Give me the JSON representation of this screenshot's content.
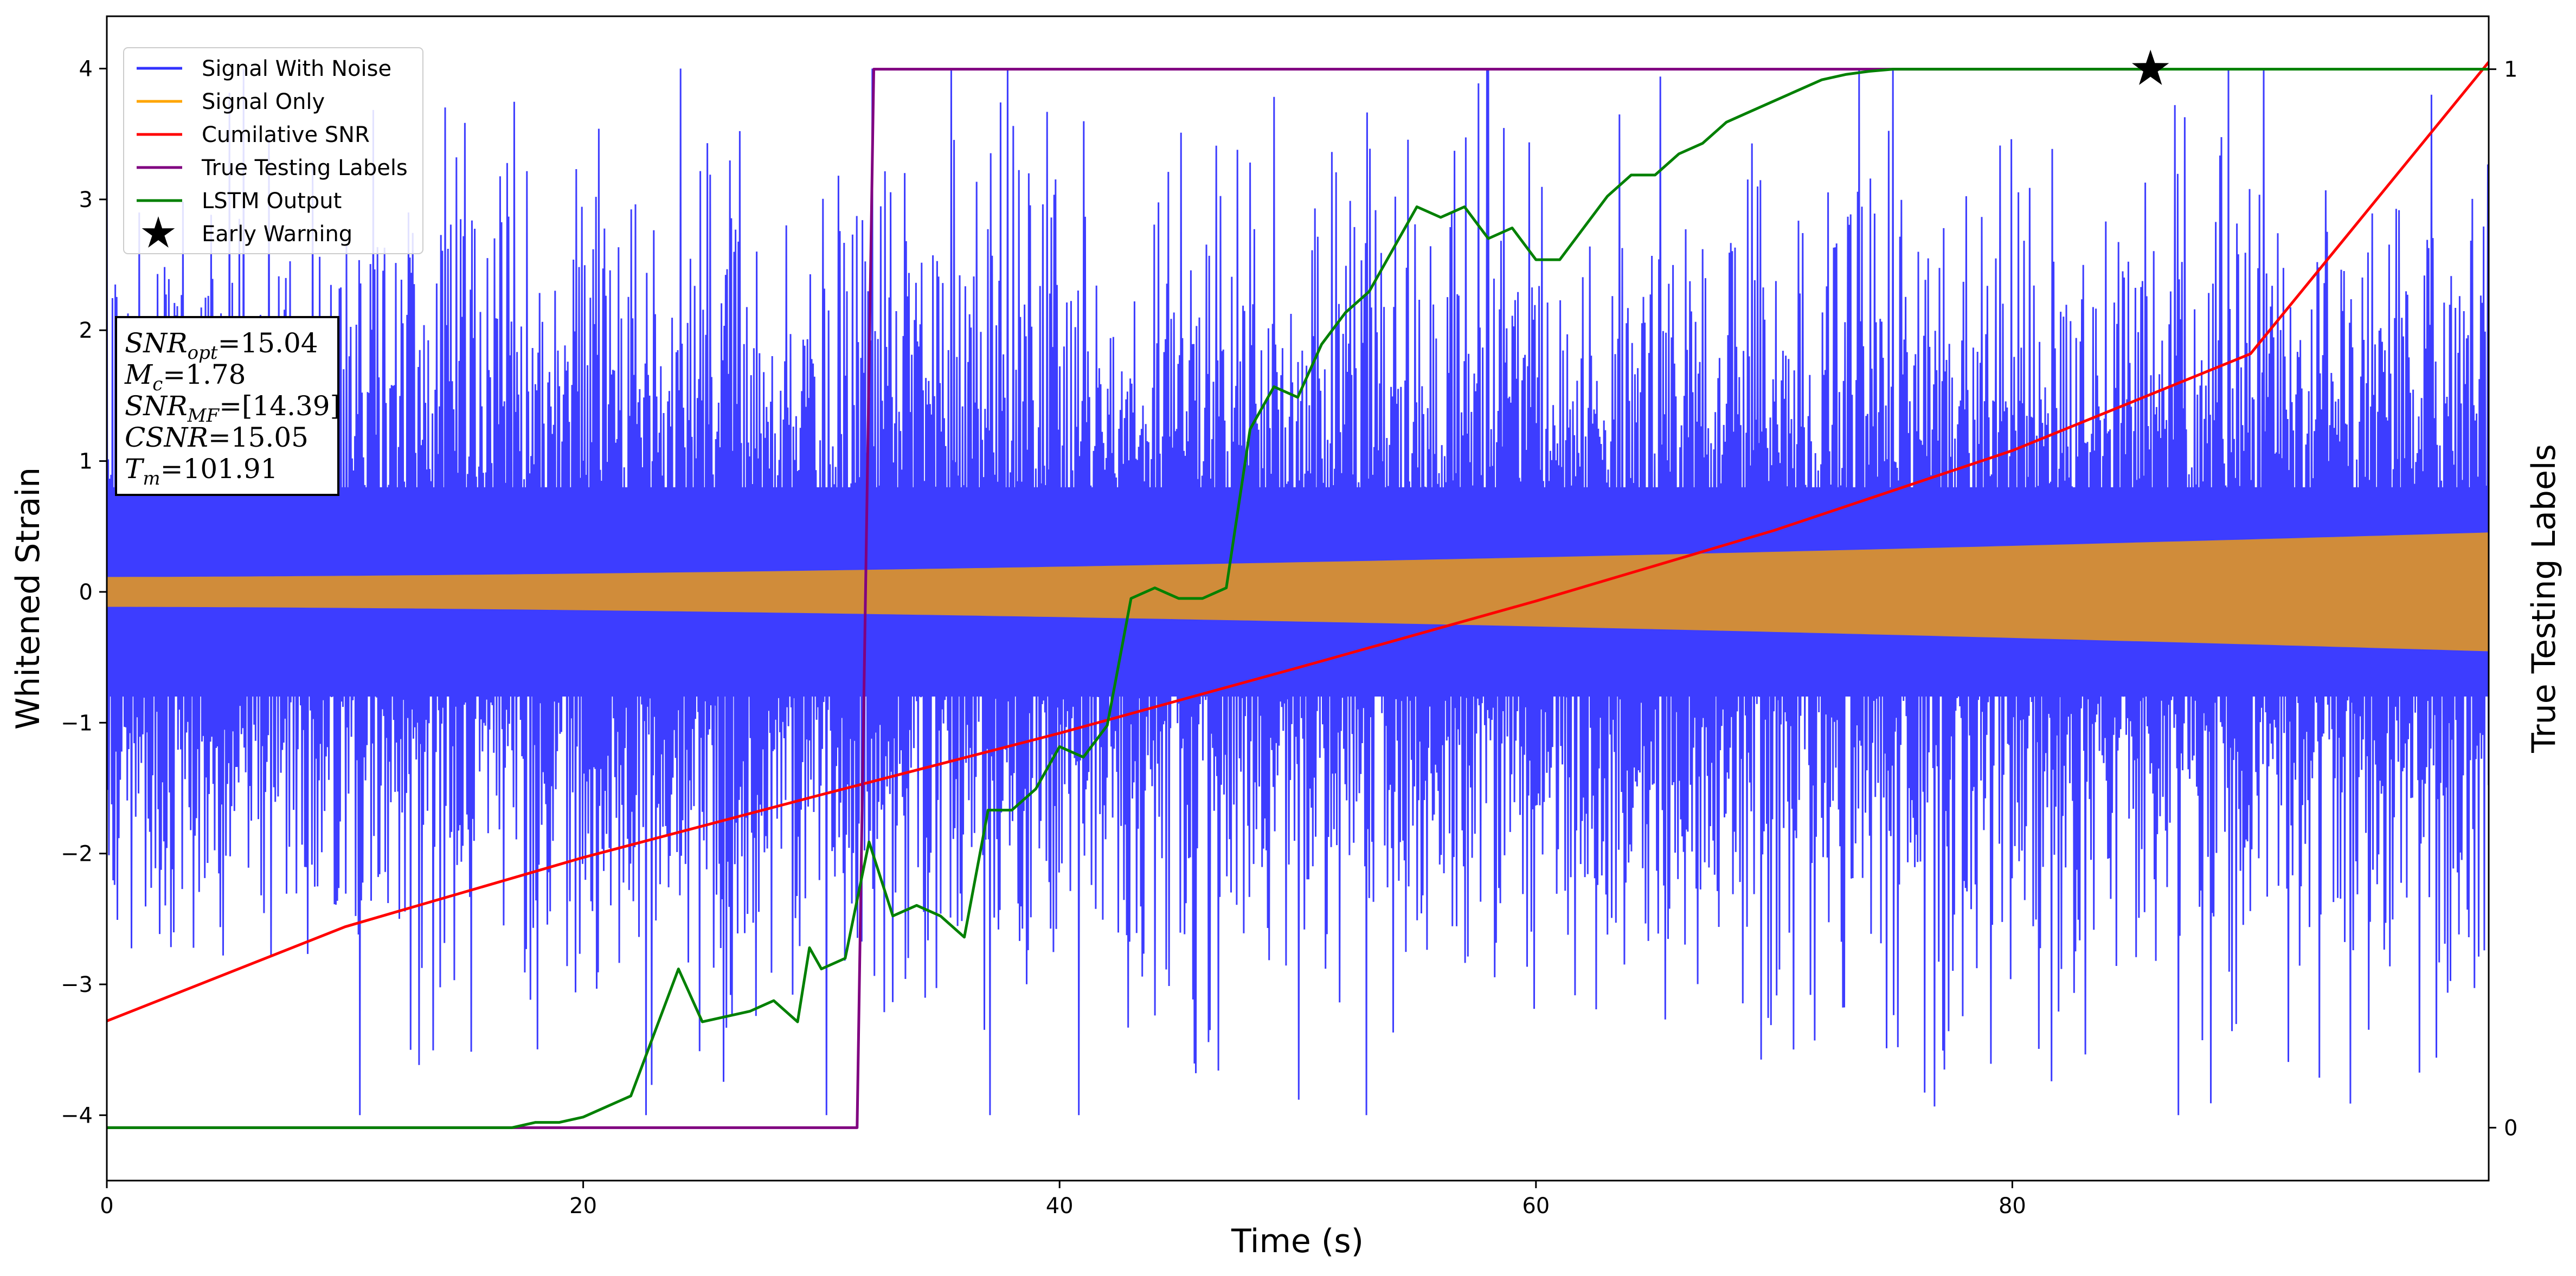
{
  "chart_data": {
    "type": "line",
    "xlabel": "Time (s)",
    "ylabel": "Whitened Strain",
    "ylabel_right": "True Testing Labels",
    "xlim": [
      0,
      100
    ],
    "ylim": [
      -4.5,
      4.4
    ],
    "ylim_right": [
      -0.05,
      1.05
    ],
    "xticks": [
      0,
      20,
      40,
      60,
      80
    ],
    "yticks": [
      -4,
      -3,
      -2,
      -1,
      0,
      1,
      2,
      3,
      4
    ],
    "yticks_right": [
      0,
      1
    ],
    "grid": false,
    "legend_position": "top-left",
    "legend": [
      {
        "label": "Signal With Noise",
        "color": "#3333ff",
        "marker": "line"
      },
      {
        "label": "Signal Only",
        "color": "#ffa500",
        "marker": "line"
      },
      {
        "label": "Cumilative SNR",
        "color": "#ff0000",
        "marker": "line"
      },
      {
        "label": "True Testing Labels",
        "color": "#800080",
        "marker": "line"
      },
      {
        "label": "LSTM Output",
        "color": "#008000",
        "marker": "line"
      },
      {
        "label": "Early Warning",
        "color": "#000000",
        "marker": "star"
      }
    ],
    "annotation": {
      "lines": [
        {
          "sym": "SNR",
          "sub": "opt",
          "value": "=15.04"
        },
        {
          "sym": "M",
          "sub": "c",
          "value": "=1.78"
        },
        {
          "sym": "SNR",
          "sub": "MF",
          "value": "=[14.39]"
        },
        {
          "sym": "CSNR",
          "sub": "",
          "value": "=15.05"
        },
        {
          "sym": "T",
          "sub": "m",
          "value": "=101.91"
        }
      ]
    },
    "series": [
      {
        "name": "Signal With Noise",
        "axis": "left",
        "color": "#3333ff",
        "style": "dense-noise",
        "typical_abs": [
          1.0,
          2.0
        ],
        "peak_abs": [
          3.9,
          4.0
        ]
      },
      {
        "name": "Signal Only",
        "axis": "left",
        "color": "#d08c3a",
        "style": "envelope",
        "x": [
          0,
          100
        ],
        "amplitude": [
          0.11,
          0.45
        ]
      },
      {
        "name": "Cumilative SNR",
        "axis": "left",
        "color": "#ff0000",
        "x": [
          0,
          10,
          20,
          30,
          40,
          50,
          60,
          70,
          80,
          90,
          100
        ],
        "y": [
          -3.28,
          -2.56,
          -2.03,
          -1.55,
          -1.08,
          -0.58,
          -0.07,
          0.47,
          1.08,
          1.82,
          4.05
        ]
      },
      {
        "name": "True Testing Labels",
        "axis": "right",
        "color": "#800080",
        "x": [
          0,
          31.5,
          32.2,
          85.8
        ],
        "y": [
          0,
          0,
          1,
          1
        ]
      },
      {
        "name": "LSTM Output",
        "axis": "right",
        "color": "#008000",
        "x": [
          0,
          17,
          18,
          19,
          20,
          21,
          22,
          23,
          24,
          25,
          26,
          27,
          28,
          29,
          29.5,
          30,
          31,
          32,
          33,
          34,
          35,
          36,
          37,
          38,
          39,
          40,
          41,
          42,
          43,
          44,
          45,
          46,
          47,
          48,
          49,
          50,
          51,
          52,
          53,
          54,
          55,
          56,
          57,
          58,
          59,
          60,
          61,
          62,
          63,
          64,
          65,
          66,
          67,
          68,
          69,
          70,
          71,
          72,
          73,
          74,
          75,
          76,
          78,
          80,
          85,
          100
        ],
        "y": [
          0,
          0,
          0.005,
          0.005,
          0.01,
          0.02,
          0.03,
          0.09,
          0.15,
          0.1,
          0.105,
          0.11,
          0.12,
          0.1,
          0.17,
          0.15,
          0.16,
          0.27,
          0.2,
          0.21,
          0.2,
          0.18,
          0.3,
          0.3,
          0.32,
          0.36,
          0.35,
          0.38,
          0.5,
          0.51,
          0.5,
          0.5,
          0.51,
          0.66,
          0.7,
          0.69,
          0.74,
          0.77,
          0.79,
          0.83,
          0.87,
          0.86,
          0.87,
          0.84,
          0.85,
          0.82,
          0.82,
          0.85,
          0.88,
          0.9,
          0.9,
          0.92,
          0.93,
          0.95,
          0.96,
          0.97,
          0.98,
          0.99,
          0.995,
          0.998,
          1.0,
          1.0,
          1.0,
          1.0,
          1.0,
          1.0
        ]
      }
    ],
    "markers": [
      {
        "name": "Early Warning",
        "axis": "right",
        "x": 85.8,
        "y": 1.0,
        "symbol": "star",
        "color": "#000000"
      }
    ]
  }
}
